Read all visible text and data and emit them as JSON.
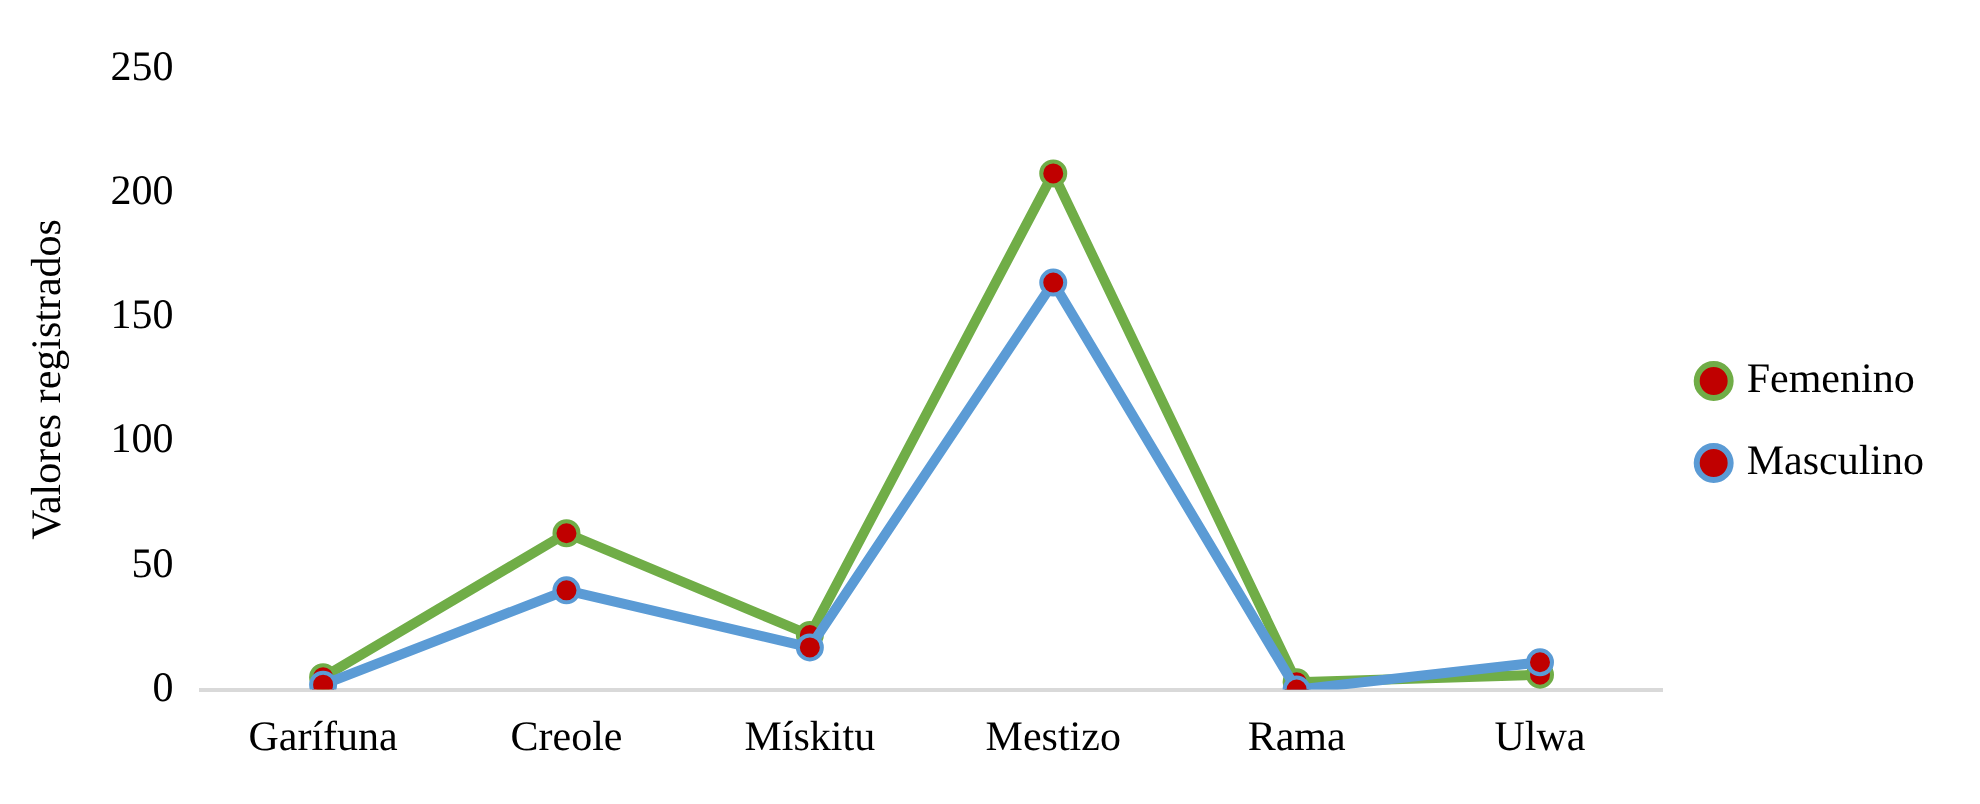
{
  "chart_data": {
    "type": "line",
    "ylabel": "Valores registrados",
    "categories": [
      "Garífuna",
      "Creole",
      "Mískitu",
      "Mestizo",
      "Rama",
      "Ulwa"
    ],
    "series": [
      {
        "name": "Femenino",
        "color": "#70ad47",
        "values": [
          5,
          63,
          22,
          208,
          3,
          6
        ]
      },
      {
        "name": "Masculino",
        "color": "#5b9bd5",
        "values": [
          2,
          40,
          17,
          164,
          0,
          11
        ]
      }
    ],
    "ylim": [
      0,
      250
    ],
    "yticks": [
      0,
      50,
      100,
      150,
      200,
      250
    ],
    "grid": false,
    "legend": "right",
    "marker": "circle",
    "line_style": "solid"
  }
}
